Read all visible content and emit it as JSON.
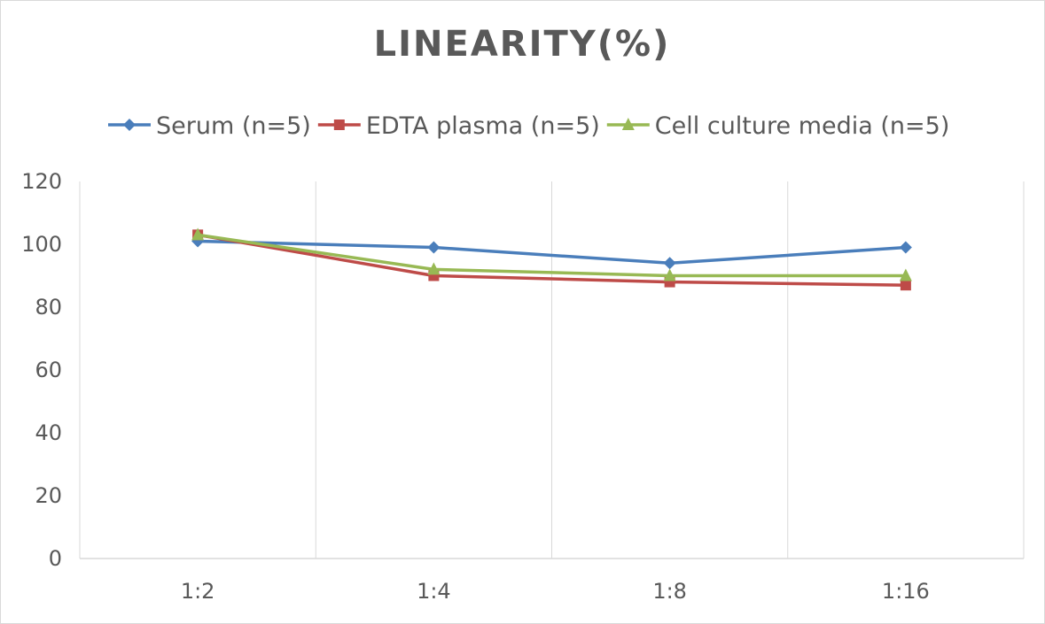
{
  "chart_data": {
    "type": "line",
    "title": "LINEARITY(%)",
    "categories": [
      "1:2",
      "1:4",
      "1:8",
      "1:16"
    ],
    "series": [
      {
        "name": "Serum (n=5)",
        "values": [
          101,
          99,
          94,
          99
        ],
        "color": "#4a7ebb",
        "marker": "diamond"
      },
      {
        "name": "EDTA plasma (n=5)",
        "values": [
          103,
          90,
          88,
          87
        ],
        "color": "#be4b48",
        "marker": "square"
      },
      {
        "name": "Cell culture media (n=5)",
        "values": [
          103,
          92,
          90,
          90
        ],
        "color": "#98b954",
        "marker": "triangle"
      }
    ],
    "ylim": [
      0,
      120
    ],
    "yticks": [
      0,
      20,
      40,
      60,
      80,
      100,
      120
    ],
    "grid": "vertical",
    "legend": "top",
    "xlabel": "",
    "ylabel": ""
  }
}
